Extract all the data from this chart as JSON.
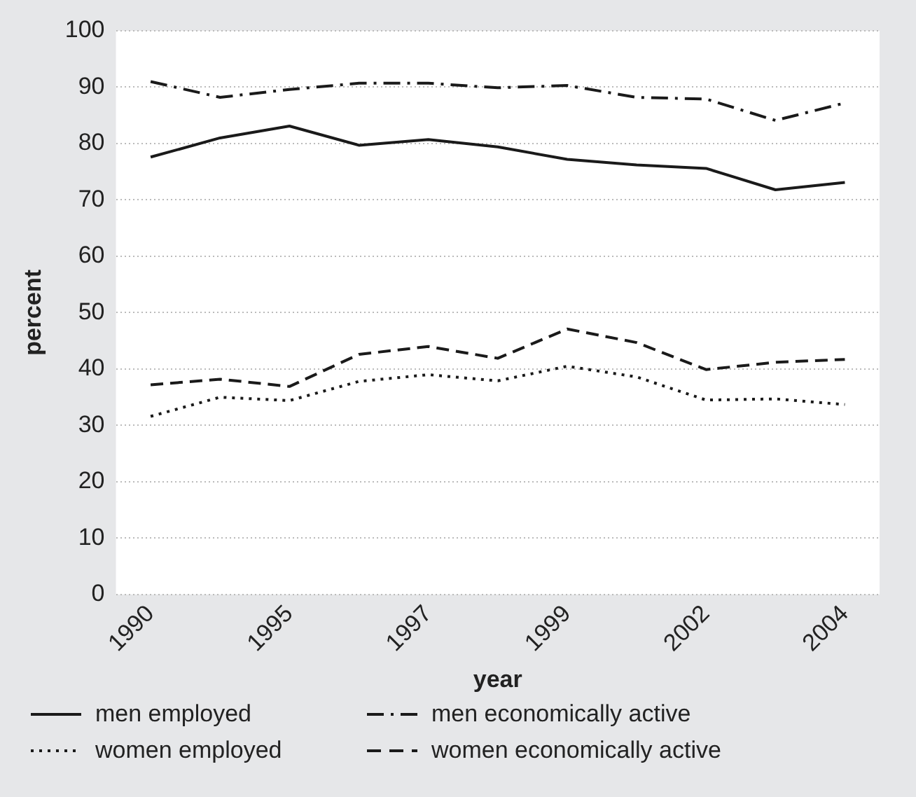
{
  "chart_data": {
    "type": "line",
    "xlabel": "year",
    "ylabel": "percent",
    "categories": [
      "1990",
      null,
      "1995",
      null,
      "1997",
      null,
      "1999",
      null,
      "2002",
      null,
      "2004"
    ],
    "ylim": [
      0,
      100
    ],
    "yticks": [
      0,
      10,
      20,
      30,
      40,
      50,
      60,
      70,
      80,
      90,
      100
    ],
    "grid": "y",
    "legend": "bottom",
    "marker": "none",
    "series": [
      {
        "name": "men employed",
        "color": "#1a1a1a",
        "line_style": "solid",
        "values": [
          77.6,
          81.0,
          83.1,
          79.7,
          80.7,
          79.4,
          77.2,
          76.2,
          75.6,
          71.8,
          73.1
        ]
      },
      {
        "name": "men economically active",
        "color": "#1a1a1a",
        "line_style": "dashdot",
        "values": [
          91.0,
          88.2,
          89.6,
          90.7,
          90.7,
          89.9,
          90.3,
          88.2,
          87.9,
          84.1,
          87.2
        ]
      },
      {
        "name": "women employed",
        "color": "#1a1a1a",
        "line_style": "dotted",
        "values": [
          31.6,
          35.0,
          34.4,
          37.8,
          39.0,
          37.9,
          40.5,
          38.6,
          34.5,
          34.7,
          33.7
        ]
      },
      {
        "name": "women economically active",
        "color": "#1a1a1a",
        "line_style": "dashed",
        "values": [
          37.2,
          38.2,
          36.9,
          42.6,
          44.0,
          41.9,
          47.1,
          44.7,
          39.9,
          41.2,
          41.7
        ]
      }
    ]
  }
}
